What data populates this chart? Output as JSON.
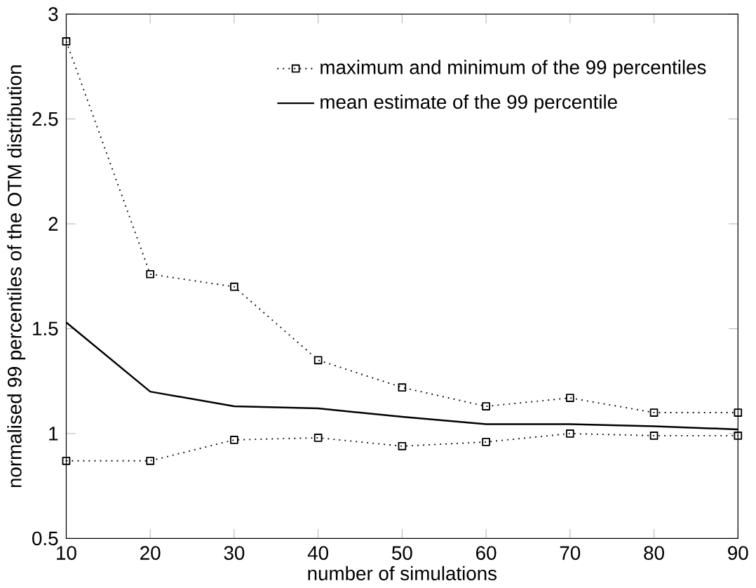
{
  "chart_data": {
    "type": "line",
    "xlabel": "number of simulations",
    "ylabel": "normalised 99 percentiles of the OTM distribution",
    "x": [
      10,
      20,
      30,
      40,
      50,
      60,
      70,
      80,
      90
    ],
    "series": [
      {
        "name": "maximum and minimum of the 99 percentiles",
        "color": "#000000",
        "marker": "square",
        "line_style": "dotted",
        "values": [
          2.87,
          1.76,
          1.7,
          1.35,
          1.22,
          1.13,
          1.17,
          1.1,
          1.1
        ]
      },
      {
        "color": "#000000",
        "marker": "square",
        "line_style": "dotted",
        "values": [
          0.87,
          0.87,
          0.97,
          0.98,
          0.94,
          0.96,
          1.0,
          0.99,
          0.99
        ]
      },
      {
        "name": "mean estimate of the 99 percentile",
        "color": "#000000",
        "marker": "none",
        "line_style": "solid",
        "values": [
          1.53,
          1.2,
          1.13,
          1.12,
          1.08,
          1.045,
          1.045,
          1.035,
          1.02
        ]
      }
    ],
    "xlim": [
      10,
      90
    ],
    "ylim": [
      0.5,
      3
    ],
    "xticks": [
      10,
      20,
      30,
      40,
      50,
      60,
      70,
      80,
      90
    ],
    "yticks": [
      0.5,
      1,
      1.5,
      2,
      2.5,
      3
    ],
    "grid": false,
    "legend": "top right"
  }
}
